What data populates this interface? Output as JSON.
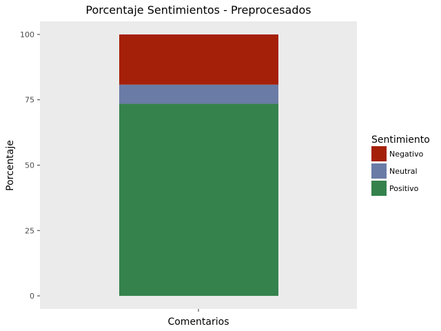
{
  "chart_data": {
    "type": "bar",
    "stacked": true,
    "title": "Porcentaje Sentimientos - Preprocesados",
    "xlabel": "Comentarios",
    "ylabel": "Porcentaje",
    "categories": [
      ""
    ],
    "ylim": [
      -5,
      105
    ],
    "yticks": [
      0,
      25,
      50,
      75,
      100
    ],
    "series": [
      {
        "name": "Positivo",
        "values": [
          73.5
        ],
        "color": "#35824d"
      },
      {
        "name": "Neutral",
        "values": [
          7.3
        ],
        "color": "#6a7ba6"
      },
      {
        "name": "Negativo",
        "values": [
          19.2
        ],
        "color": "#a52008"
      }
    ],
    "legend": {
      "title": "Sentimiento",
      "position": "right",
      "entries": [
        "Negativo",
        "Neutral",
        "Positivo"
      ]
    },
    "grid": false,
    "panel_background": "#ebebeb"
  }
}
